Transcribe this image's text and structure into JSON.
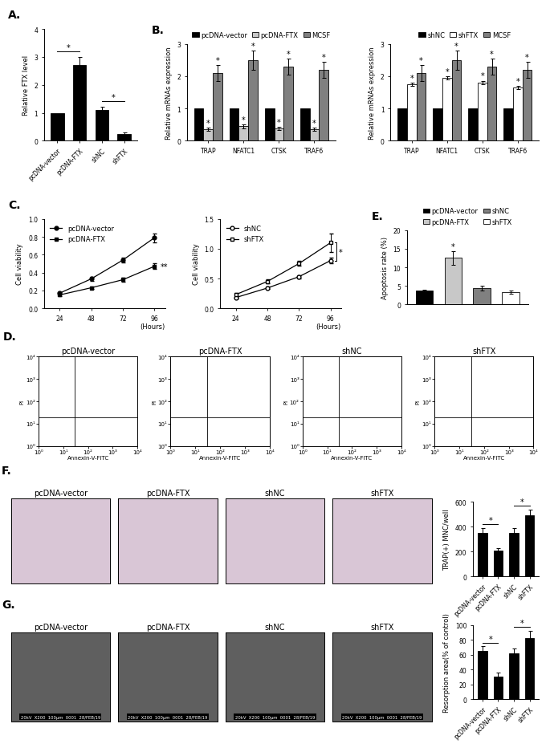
{
  "chart_data": [
    {
      "panel": "A.",
      "type": "bar",
      "categories": [
        "pcDNA-vector",
        "pcDNA-FTX",
        "shNC",
        "shFTX"
      ],
      "values": [
        1,
        2.7,
        1.1,
        0.25
      ],
      "errors": [
        null,
        0.3,
        0.12,
        0.05
      ],
      "color": "#000000",
      "ylabel": "Relative FTX level",
      "ylim": [
        0,
        4
      ],
      "yticks": [
        0,
        1,
        2,
        3,
        4
      ],
      "annotations": [
        {
          "text": "*",
          "categories": [
            "pcDNA-vector",
            "pcDNA-FTX"
          ]
        },
        {
          "text": "*",
          "categories": [
            "shNC",
            "shFTX"
          ]
        }
      ]
    },
    {
      "panel": "B.",
      "type": "bar",
      "categories": [
        "TRAP",
        "NFATC1",
        "CTSK",
        "TRAF6"
      ],
      "series": [
        {
          "name": "pcDNA-vector",
          "color": "#000000",
          "values": [
            1,
            1,
            1,
            1
          ]
        },
        {
          "name": "pcDNA-FTX",
          "color": "#c8c8c8",
          "values": [
            0.35,
            0.45,
            0.38,
            0.35
          ],
          "errors": [
            0.05,
            0.06,
            0.05,
            0.05
          ],
          "significance": [
            "*",
            "*",
            "*",
            "*"
          ]
        },
        {
          "name": "MCSF",
          "color": "#808080",
          "values": [
            2.1,
            2.5,
            2.3,
            2.2
          ],
          "errors": [
            0.25,
            0.3,
            0.25,
            0.25
          ],
          "significance": [
            "*",
            "*",
            "*",
            "*"
          ]
        }
      ],
      "ylabel": "Relative mRNAs expression",
      "ylim": [
        0,
        3
      ],
      "yticks": [
        0,
        1,
        2,
        3
      ],
      "legend": "top"
    },
    {
      "type": "bar",
      "categories": [
        "TRAP",
        "NFATC1",
        "CTSK",
        "TRAF6"
      ],
      "series": [
        {
          "name": "shNC",
          "color": "#000000",
          "values": [
            1,
            1,
            1,
            1
          ]
        },
        {
          "name": "shFTX",
          "color": "#ffffff",
          "values": [
            1.75,
            1.95,
            1.8,
            1.65
          ],
          "errors": [
            0.05,
            0.05,
            0.06,
            0.05
          ],
          "significance": [
            "*",
            "*",
            "*",
            "*"
          ]
        },
        {
          "name": "MCSF",
          "color": "#808080",
          "values": [
            2.1,
            2.5,
            2.3,
            2.2
          ],
          "errors": [
            0.25,
            0.3,
            0.25,
            0.25
          ],
          "significance": [
            "*",
            "*",
            "*",
            "*"
          ]
        }
      ],
      "ylabel": "Relative mRNAs expression",
      "ylim": [
        0,
        3
      ],
      "yticks": [
        0,
        1,
        2,
        3
      ],
      "legend": "top"
    },
    {
      "panel": "C.",
      "type": "line",
      "x": [
        24,
        48,
        72,
        96
      ],
      "series": [
        {
          "name": "pcDNA-vector",
          "color": "#000000",
          "marker": "circle",
          "values": [
            0.17,
            0.33,
            0.54,
            0.79
          ],
          "errors": [
            0.01,
            0.02,
            0.03,
            0.05
          ]
        },
        {
          "name": "pcDNA-FTX",
          "color": "#000000",
          "marker": "square",
          "values": [
            0.15,
            0.23,
            0.32,
            0.47
          ],
          "errors": [
            0.01,
            0.01,
            0.02,
            0.03
          ]
        }
      ],
      "xlabel": "(Hours)",
      "ylabel": "Cell viability",
      "xlim": [
        12,
        104
      ],
      "xticks": [
        24,
        48,
        72,
        96
      ],
      "ylim": [
        0,
        1.0
      ],
      "yticks": [
        {
          "value": 0,
          "label": "0.0"
        },
        0.2,
        0.4,
        0.6,
        0.8,
        1.0
      ],
      "legend": "upper left",
      "annotations": [
        {
          "text": "**",
          "x": 96,
          "series": "pcDNA-FTX"
        }
      ]
    },
    {
      "type": "line",
      "x": [
        24,
        48,
        72,
        96
      ],
      "series": [
        {
          "name": "shNC",
          "color": "#000000",
          "marker": "open_circle",
          "values": [
            0.18,
            0.34,
            0.53,
            0.8
          ],
          "errors": [
            0.02,
            0.02,
            0.03,
            0.05
          ]
        },
        {
          "name": "shFTX",
          "color": "#000000",
          "marker": "open_square",
          "values": [
            0.23,
            0.45,
            0.75,
            1.1
          ],
          "errors": [
            0.03,
            0.03,
            0.04,
            0.15
          ]
        }
      ],
      "xlabel": "(Hours)",
      "ylabel": "Cell viability",
      "xlim": [
        12,
        104
      ],
      "xticks": [
        24,
        48,
        72,
        96
      ],
      "ylim": [
        0,
        1.5
      ],
      "yticks": [
        {
          "value": 0,
          "label": "0.0"
        },
        0.5,
        1.0,
        1.5
      ],
      "legend": "upper left",
      "annotations": [
        {
          "text": "*",
          "x": 96
        }
      ]
    },
    {
      "panel": "E.",
      "type": "bar",
      "categories": [
        "pcDNA-vector",
        "pcDNA-FTX",
        "shNC",
        "shFTX"
      ],
      "values": [
        3.8,
        12.5,
        4.4,
        3.3
      ],
      "errors": [
        0.2,
        1.8,
        0.6,
        0.5
      ],
      "colors": [
        "#000000",
        "#c8c8c8",
        "#808080",
        "#ffffff"
      ],
      "significance": [
        null,
        "*",
        null,
        null
      ],
      "ylabel": "Apoptosis rate (%)",
      "ylim": [
        0,
        20
      ],
      "yticks": [
        0,
        5,
        10,
        15,
        20
      ],
      "legend": "top",
      "tick_labels": "y"
    },
    {
      "panel": "D.",
      "type": "scatter",
      "titles": [
        "pcDNA-vector",
        "pcDNA-FTX",
        "shNC",
        "shFTX"
      ],
      "xlabel": "Annexin-V-FITC",
      "ylabel": "PI",
      "log": true,
      "xlim": [
        1,
        10000
      ],
      "ylim": [
        1,
        10000
      ],
      "xticks": [
        {
          "value": 1,
          "label": "10⁰"
        },
        {
          "value": 10,
          "label": "10¹"
        },
        {
          "value": 100,
          "label": "10²"
        },
        {
          "value": 1000,
          "label": "10³"
        },
        {
          "value": 10000,
          "label": "10⁴"
        }
      ],
      "yticks": [
        {
          "value": 1,
          "label": "10⁰"
        },
        {
          "value": 10,
          "label": "10¹"
        },
        {
          "value": 100,
          "label": "10²"
        },
        {
          "value": 1000,
          "label": "10³"
        },
        {
          "value": 10000,
          "label": "10⁴"
        }
      ],
      "gates": {
        "x": 30,
        "y": 20
      }
    },
    {
      "panel": "F.",
      "type": "image",
      "titles": [
        "pcDNA-vector",
        "pcDNA-FTX",
        "shNC",
        "shFTX"
      ]
    },
    {
      "type": "bar",
      "categories": [
        "pcDNA-vector",
        "pcDNA-FTX",
        "shNC",
        "shFTX"
      ],
      "values": [
        350,
        205,
        350,
        490
      ],
      "errors": [
        40,
        25,
        40,
        50
      ],
      "color": "#000000",
      "ylabel": "TRAP(+) MNC/well",
      "ylim": [
        0,
        600
      ],
      "yticks": [
        0,
        200,
        400,
        600
      ],
      "annotations": [
        {
          "text": "*",
          "categories": [
            "pcDNA-vector",
            "pcDNA-FTX"
          ]
        },
        {
          "text": "*",
          "categories": [
            "shNC",
            "shFTX"
          ]
        }
      ]
    },
    {
      "panel": "G.",
      "type": "image",
      "titles": [
        "pcDNA-vector",
        "pcDNA-FTX",
        "shNC",
        "shFTX"
      ],
      "caption": "20kV  X200  100µm  0001  28/FEB/19"
    },
    {
      "type": "bar",
      "categories": [
        "pcDNA-vector",
        "pcDNA-FTX",
        "shNC",
        "shFTX"
      ],
      "values": [
        65,
        31,
        62,
        82
      ],
      "errors": [
        6,
        5,
        6,
        10
      ],
      "color": "#000000",
      "ylabel": "Resorption area(% of control)",
      "ylim": [
        0,
        100
      ],
      "yticks": [
        0,
        20,
        40,
        60,
        80,
        100
      ],
      "annotations": [
        {
          "text": "*",
          "categories": [
            "pcDNA-vector",
            "pcDNA-FTX"
          ]
        },
        {
          "text": "*",
          "categories": [
            "shNC",
            "shFTX"
          ]
        }
      ]
    }
  ]
}
